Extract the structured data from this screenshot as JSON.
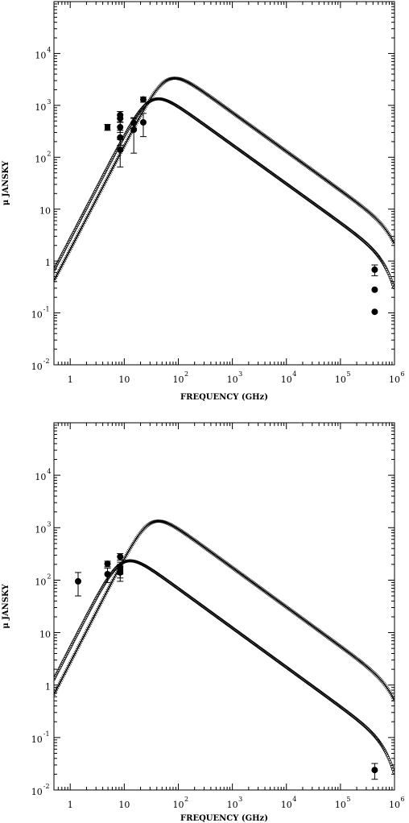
{
  "chart_data": [
    {
      "type": "scatter",
      "xlabel": "FREQUENCY (GHz)",
      "ylabel": "μ JANSKY",
      "x_scale": "log",
      "y_scale": "log",
      "xlim": [
        0.5,
        1000000
      ],
      "ylim": [
        0.01,
        100000
      ],
      "x_ticks": [
        1,
        10,
        100,
        1000,
        10000,
        100000,
        1000000
      ],
      "y_ticks": [
        0.01,
        0.1,
        1,
        10,
        100,
        1000,
        10000
      ],
      "x_tick_labels": [
        {
          "base": "1",
          "exp": ""
        },
        {
          "base": "10",
          "exp": ""
        },
        {
          "base": "10",
          "exp": "2"
        },
        {
          "base": "10",
          "exp": "3"
        },
        {
          "base": "10",
          "exp": "4"
        },
        {
          "base": "10",
          "exp": "5"
        },
        {
          "base": "10",
          "exp": "6"
        }
      ],
      "y_tick_labels": [
        {
          "base": "10",
          "exp": "-2"
        },
        {
          "base": "10",
          "exp": "-1"
        },
        {
          "base": "1",
          "exp": ""
        },
        {
          "base": "10",
          "exp": ""
        },
        {
          "base": "10",
          "exp": "2"
        },
        {
          "base": "10",
          "exp": "3"
        },
        {
          "base": "10",
          "exp": "4"
        }
      ],
      "series": [
        {
          "marker": "x",
          "peak_freq_GHz": 60,
          "peak_flux_uJy": 3000,
          "high_freq_cutoff_GHz": 1200000
        },
        {
          "marker": "o",
          "peak_freq_GHz": 30,
          "peak_flux_uJy": 1200,
          "high_freq_cutoff_GHz": 900000
        }
      ],
      "points": [
        {
          "x": 4.9,
          "y": 380,
          "err": [
            330,
            430
          ],
          "marker": "square"
        },
        {
          "x": 8.4,
          "y": 650,
          "err": [
            560,
            760
          ]
        },
        {
          "x": 8.4,
          "y": 560,
          "err": [
            480,
            650
          ]
        },
        {
          "x": 8.4,
          "y": 380,
          "err": [
            300,
            470
          ]
        },
        {
          "x": 8.4,
          "y": 240,
          "err": [
            170,
            330
          ]
        },
        {
          "x": 8.4,
          "y": 140,
          "err": [
            65,
            220
          ]
        },
        {
          "x": 15,
          "y": 460,
          "err": [
            360,
            580
          ]
        },
        {
          "x": 15,
          "y": 340,
          "err": [
            120,
            560
          ]
        },
        {
          "x": 22.5,
          "y": 1300,
          "err": [
            1150,
            1450
          ]
        },
        {
          "x": 22.5,
          "y": 470,
          "err": [
            250,
            700
          ]
        },
        {
          "x": 430000,
          "y": 0.68,
          "err": [
            0.52,
            0.84
          ]
        },
        {
          "x": 430000,
          "y": 0.28,
          "err": null
        },
        {
          "x": 430000,
          "y": 0.105,
          "err": null
        }
      ]
    },
    {
      "type": "scatter",
      "xlabel": "FREQUENCY (GHz)",
      "ylabel": "μ JANSKY",
      "x_scale": "log",
      "y_scale": "log",
      "xlim": [
        0.5,
        1000000
      ],
      "ylim": [
        0.01,
        100000
      ],
      "x_ticks": [
        1,
        10,
        100,
        1000,
        10000,
        100000,
        1000000
      ],
      "y_ticks": [
        0.01,
        0.1,
        1,
        10,
        100,
        1000,
        10000
      ],
      "x_tick_labels": [
        {
          "base": "1",
          "exp": ""
        },
        {
          "base": "10",
          "exp": ""
        },
        {
          "base": "10",
          "exp": "2"
        },
        {
          "base": "10",
          "exp": "3"
        },
        {
          "base": "10",
          "exp": "4"
        },
        {
          "base": "10",
          "exp": "5"
        },
        {
          "base": "10",
          "exp": "6"
        }
      ],
      "y_tick_labels": [
        {
          "base": "10",
          "exp": "-2"
        },
        {
          "base": "10",
          "exp": "-1"
        },
        {
          "base": "1",
          "exp": ""
        },
        {
          "base": "10",
          "exp": ""
        },
        {
          "base": "10",
          "exp": "2"
        },
        {
          "base": "10",
          "exp": "3"
        },
        {
          "base": "10",
          "exp": "4"
        }
      ],
      "series": [
        {
          "marker": "x",
          "peak_freq_GHz": 30,
          "peak_flux_uJy": 1200,
          "high_freq_cutoff_GHz": 1200000
        },
        {
          "marker": "o",
          "peak_freq_GHz": 9,
          "peak_flux_uJy": 210,
          "high_freq_cutoff_GHz": 900000
        }
      ],
      "points": [
        {
          "x": 1.4,
          "y": 95,
          "err": [
            50,
            140
          ]
        },
        {
          "x": 4.9,
          "y": 205,
          "err": [
            180,
            230
          ]
        },
        {
          "x": 4.9,
          "y": 130,
          "err": [
            90,
            170
          ]
        },
        {
          "x": 8.4,
          "y": 280,
          "err": [
            240,
            320
          ]
        },
        {
          "x": 8.4,
          "y": 175,
          "err": [
            130,
            220
          ]
        },
        {
          "x": 8.4,
          "y": 155,
          "err": [
            110,
            200
          ]
        },
        {
          "x": 8.4,
          "y": 140,
          "err": [
            95,
            185
          ]
        },
        {
          "x": 430000,
          "y": 0.024,
          "err": [
            0.016,
            0.032
          ]
        }
      ]
    }
  ]
}
